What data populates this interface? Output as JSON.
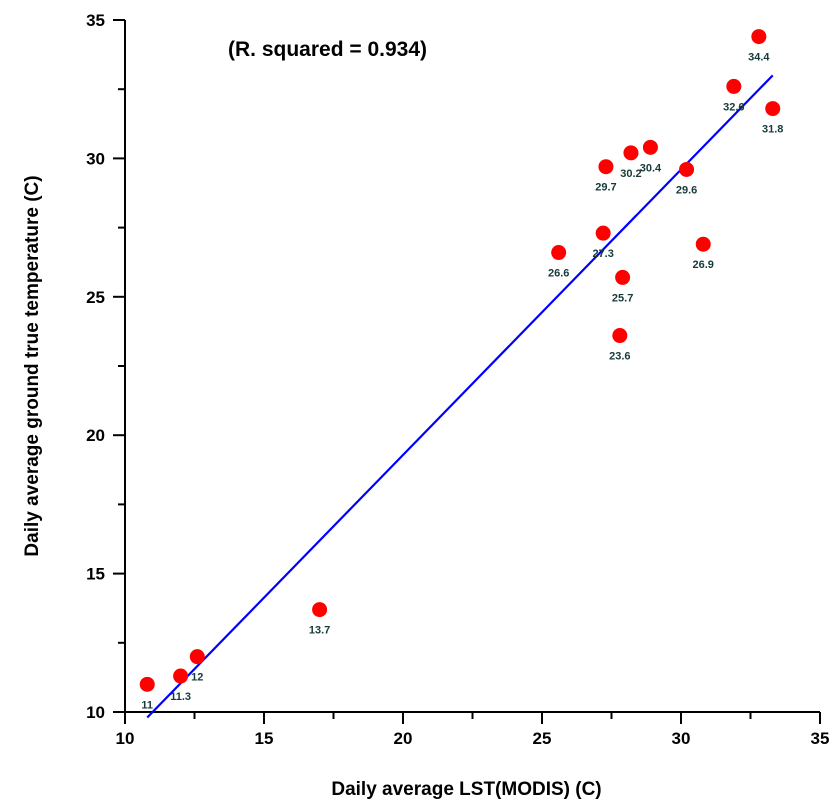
{
  "chart_data": {
    "type": "scatter",
    "title": "",
    "annotation": "(R. squared = 0.934)",
    "xlabel": "Daily average LST(MODIS) (C)",
    "ylabel": "Daily average ground true temperature (C)",
    "xlim": [
      10,
      35
    ],
    "ylim": [
      10,
      35
    ],
    "x_ticks": [
      "10",
      "15",
      "20",
      "25",
      "30",
      "35"
    ],
    "y_ticks": [
      "10",
      "15",
      "20",
      "25",
      "30",
      "35"
    ],
    "grid": false,
    "point_color": "#ff0000",
    "line_color": "#0000ff",
    "points": [
      {
        "x": 10.8,
        "y": 11.0,
        "label": "11"
      },
      {
        "x": 12.0,
        "y": 11.3,
        "label": "11.3"
      },
      {
        "x": 12.6,
        "y": 12.0,
        "label": "12"
      },
      {
        "x": 17.0,
        "y": 13.7,
        "label": "13.7"
      },
      {
        "x": 25.6,
        "y": 26.6,
        "label": "26.6"
      },
      {
        "x": 27.2,
        "y": 27.3,
        "label": "27.3"
      },
      {
        "x": 27.3,
        "y": 29.7,
        "label": "29.7"
      },
      {
        "x": 27.8,
        "y": 23.6,
        "label": "23.6"
      },
      {
        "x": 27.9,
        "y": 25.7,
        "label": "25.7"
      },
      {
        "x": 28.2,
        "y": 30.2,
        "label": "30.2"
      },
      {
        "x": 28.9,
        "y": 30.4,
        "label": "30.4"
      },
      {
        "x": 30.2,
        "y": 29.6,
        "label": "29.6"
      },
      {
        "x": 30.8,
        "y": 26.9,
        "label": "26.9"
      },
      {
        "x": 31.9,
        "y": 32.6,
        "label": "32.6"
      },
      {
        "x": 32.8,
        "y": 34.4,
        "label": "34.4"
      },
      {
        "x": 33.3,
        "y": 31.8,
        "label": "31.8"
      }
    ],
    "fit_line": {
      "x": [
        10.8,
        33.3
      ],
      "y": [
        9.8,
        33.0
      ]
    }
  }
}
